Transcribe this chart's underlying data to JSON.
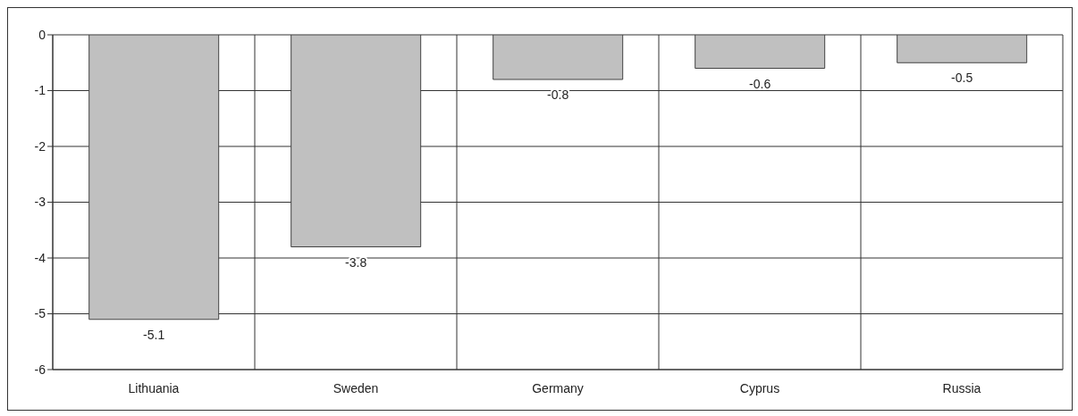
{
  "chart_data": {
    "type": "bar",
    "categories": [
      "Lithuania",
      "Sweden",
      "Germany",
      "Cyprus",
      "Russia"
    ],
    "values": [
      -5.1,
      -3.8,
      -0.8,
      -0.6,
      -0.5
    ],
    "color": "#c0c0c0",
    "ylim": [
      -6,
      0
    ],
    "yticks": [
      -6,
      -5,
      -4,
      -3,
      -2,
      -1,
      0
    ],
    "grid": true,
    "data_labels": true,
    "legend": false
  }
}
